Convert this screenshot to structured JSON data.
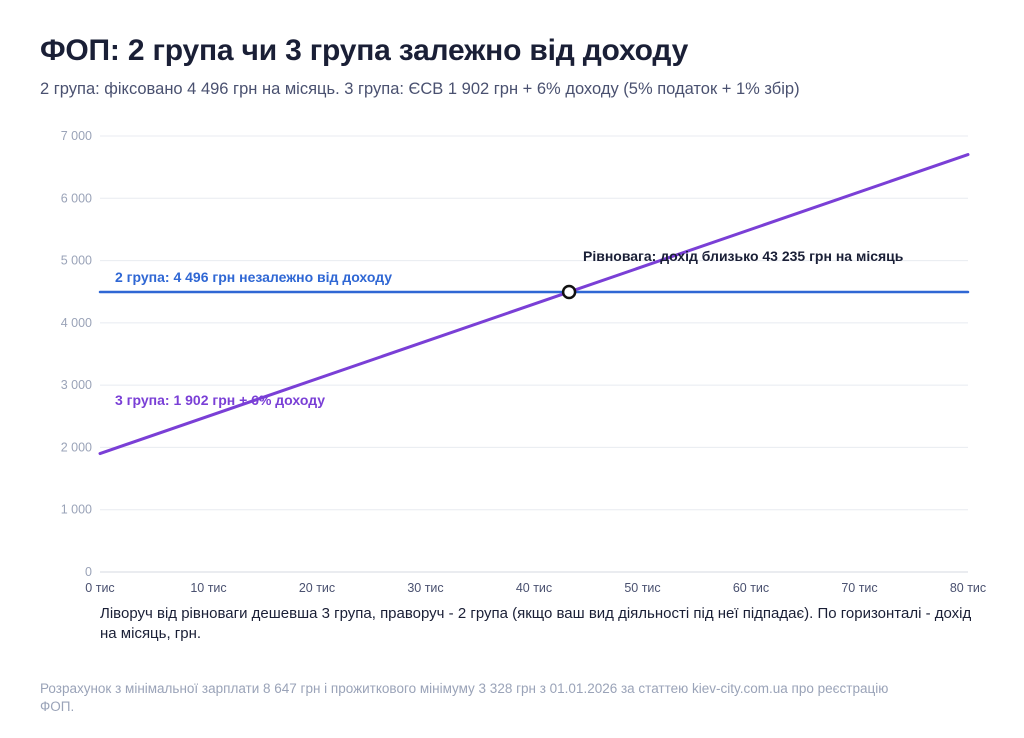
{
  "header": {
    "title": "ФОП: 2 група чи 3 група залежно від доходу",
    "subtitle": "2 група: фіксовано 4 496 грн на місяць. 3 група: ЄСВ 1 902 грн + 6% доходу (5% податок + 1% збір)"
  },
  "chart_data": {
    "type": "line",
    "xlim": [
      0,
      80000
    ],
    "ylim": [
      0,
      7000
    ],
    "x_ticks": [
      0,
      10000,
      20000,
      30000,
      40000,
      50000,
      60000,
      70000,
      80000
    ],
    "x_tick_labels": [
      "0 тис",
      "10 тис",
      "20 тис",
      "30 тис",
      "40 тис",
      "50 тис",
      "60 тис",
      "70 тис",
      "80 тис"
    ],
    "y_ticks": [
      0,
      1000,
      2000,
      3000,
      4000,
      5000,
      6000,
      7000
    ],
    "y_tick_labels": [
      "0",
      "1 000",
      "2 000",
      "3 000",
      "4 000",
      "5 000",
      "6 000",
      "7 000"
    ],
    "grid": "horizontal",
    "series": [
      {
        "name": "2 група: 4 496 грн незалежно від доходу",
        "color": "#2f67d4",
        "x": [
          0,
          80000
        ],
        "y": [
          4496,
          4496
        ]
      },
      {
        "name": "3 група: 1 902 грн + 6% доходу",
        "color": "#7a3fd6",
        "x": [
          0,
          80000
        ],
        "y": [
          1902,
          6702
        ]
      }
    ],
    "equilibrium": {
      "label": "Рівновага: дохід близько 43 235 грн на місяць",
      "x": 43235,
      "y": 4496
    }
  },
  "caption": "Ліворуч від рівноваги дешевша 3 група, праворуч - 2 група (якщо ваш вид діяльності під неї підпадає). По горизонталі - дохід на місяць, грн.",
  "footnote": "Розрахунок з мінімальної зарплати 8 647 грн і прожиткового мінімуму 3 328 грн з 01.01.2026 за статтею kiev-city.com.ua про реєстрацію ФОП."
}
